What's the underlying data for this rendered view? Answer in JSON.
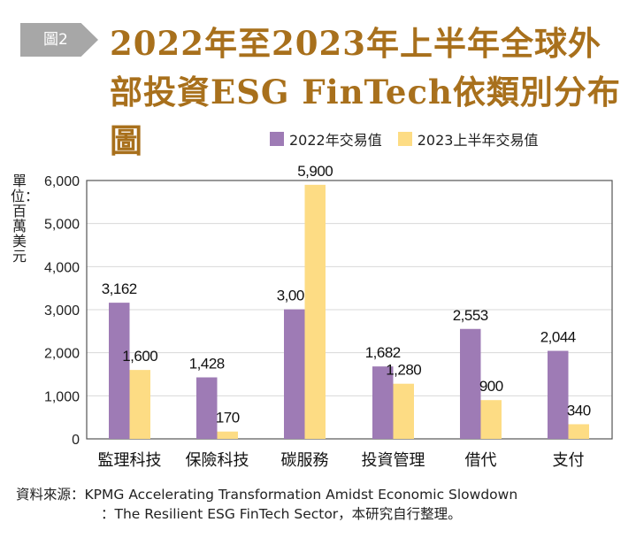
{
  "figure_tag": "圖2",
  "title": "2022年至2023年上半年全球外部投資ESG FinTech依類別分布圖",
  "source_line1": "資料來源：KPMG Accelerating Transformation Amidst Economic Slowdown",
  "source_line2": "：The Resilient ESG FinTech Sector，本研究自行整理。",
  "chart_data": {
    "type": "bar",
    "title": "2022年至2023年上半年全球外部投資ESG FinTech依類別分布圖",
    "ylabel": "單位：百萬美元",
    "xlabel": "",
    "ylim": [
      0,
      6000
    ],
    "yticks": [
      0,
      1000,
      2000,
      3000,
      4000,
      5000,
      6000
    ],
    "ytick_labels": [
      "0",
      "1,000",
      "2,000",
      "3,000",
      "4,000",
      "5,000",
      "6,000"
    ],
    "grid": true,
    "legend": "top-right",
    "categories": [
      "監理科技",
      "保險科技",
      "碳服務",
      "投資管理",
      "借代",
      "支付"
    ],
    "series": [
      {
        "name": "2022年交易值",
        "color": "#9e7bb5",
        "values": [
          3162,
          1428,
          3008,
          1682,
          2553,
          2044
        ],
        "labels": [
          "3,162",
          "1,428",
          "3,008",
          "1,682",
          "2,553",
          "2,044"
        ]
      },
      {
        "name": "2023上半年交易值",
        "color": "#fddc84",
        "values": [
          1600,
          170,
          5900,
          1280,
          900,
          340
        ],
        "labels": [
          "1,600",
          "170",
          "5,900",
          "1,280",
          "900",
          "340"
        ]
      }
    ]
  }
}
